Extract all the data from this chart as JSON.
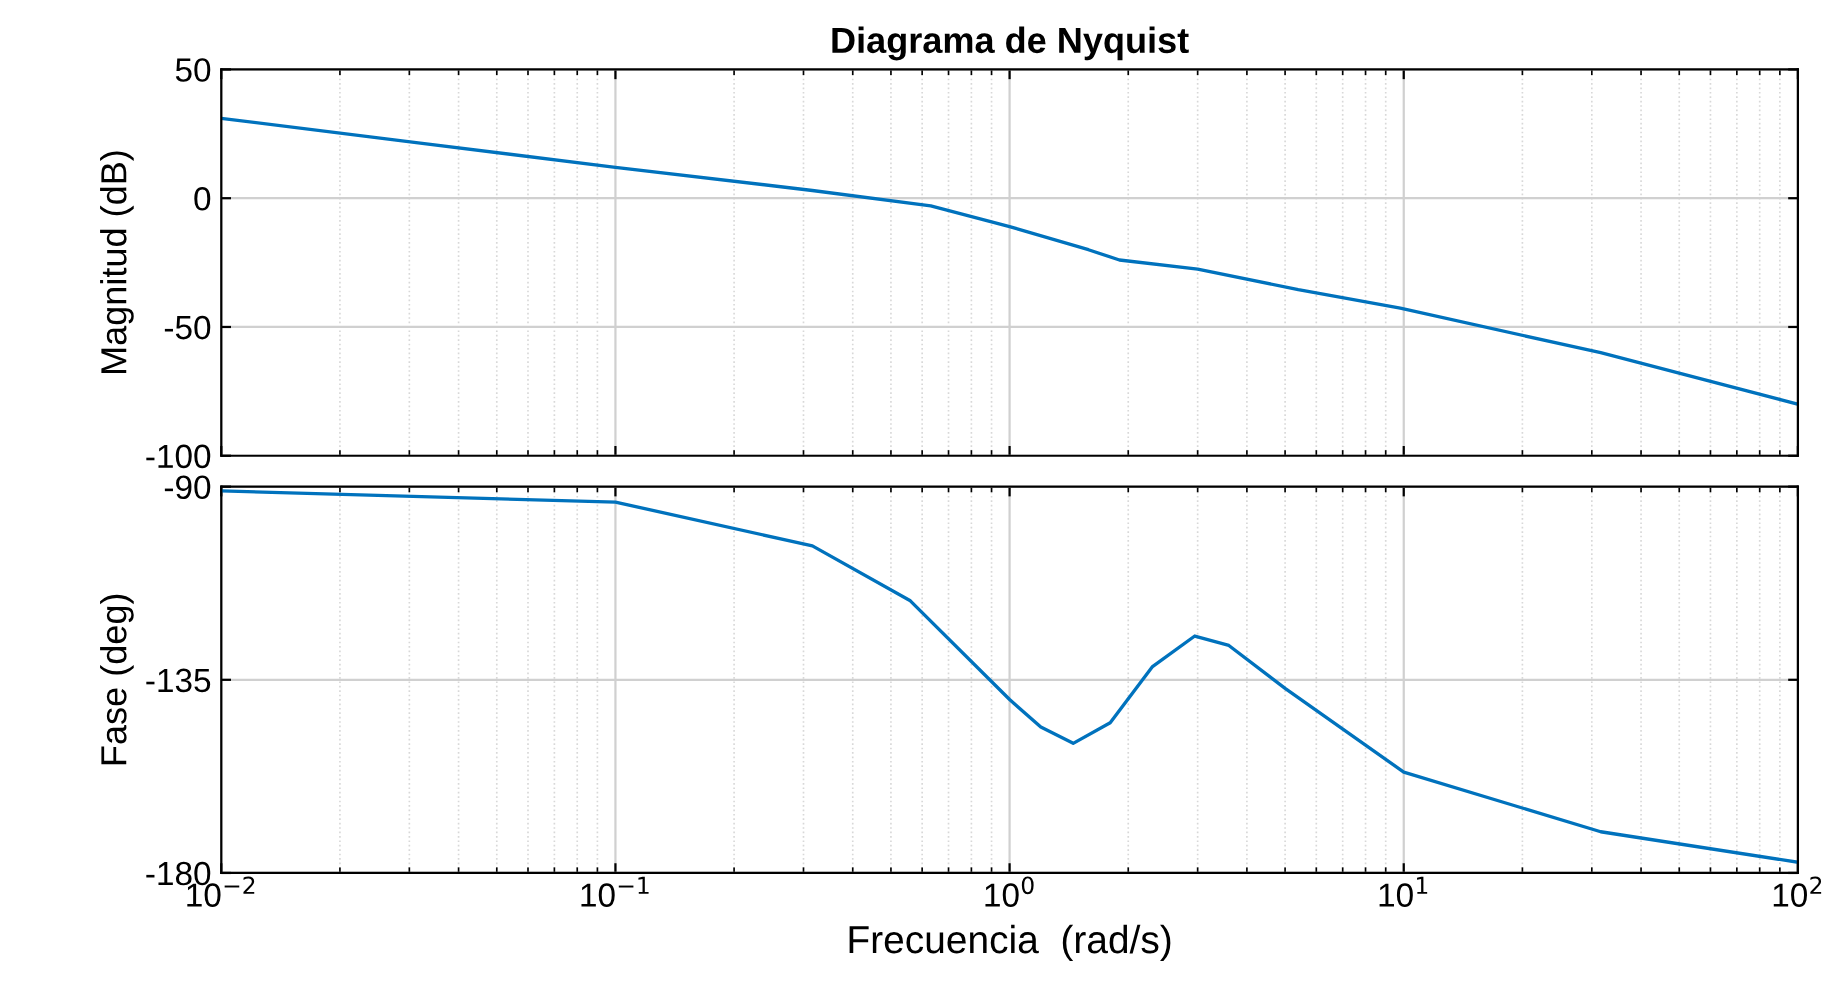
{
  "chart_data": [
    {
      "type": "line",
      "title": "Diagrama de Nyquist",
      "ylabel": "Magnitud (dB)",
      "log": "x",
      "grid": true,
      "tick_labels": "y",
      "xlim": [
        0.01,
        100
      ],
      "xticks": [
        0.01,
        0.1,
        1,
        10,
        100
      ],
      "ylim": [
        -100,
        50
      ],
      "yticks": [
        -100,
        -50,
        0,
        50
      ],
      "series": [
        {
          "color": "#0072bd",
          "x": [
            0.01,
            0.0316,
            0.1,
            0.316,
            0.631,
            1,
            1.585,
            1.9,
            3.0,
            5.4,
            9.8,
            31.6,
            100
          ],
          "values": [
            31,
            21.5,
            12,
            3,
            -3,
            -11,
            -20,
            -24,
            -27.5,
            -35.5,
            -42.7,
            -60,
            -80
          ]
        }
      ]
    },
    {
      "type": "line",
      "xlabel": "Frecuencia  (rad/s)",
      "ylabel": "Fase (deg)",
      "log": "x",
      "grid": true,
      "xlim": [
        0.01,
        100
      ],
      "xticks": [
        {
          "value": 0.01,
          "label": "10$^{−2}$"
        },
        {
          "value": 0.1,
          "label": "10$^{−1}$"
        },
        {
          "value": 1,
          "label": "10$^{0}$"
        },
        {
          "value": 10,
          "label": "10$^{1}$"
        },
        {
          "value": 100,
          "label": "10$^{2}$"
        }
      ],
      "ylim": [
        -180,
        -90
      ],
      "yticks": [
        -180,
        -135,
        -90
      ],
      "series": [
        {
          "color": "#0072bd",
          "x": [
            0.01,
            0.1,
            0.316,
            0.56,
            1,
            1.2,
            1.45,
            1.8,
            2.3,
            2.95,
            3.6,
            5,
            10,
            31.6,
            100
          ],
          "values": [
            -91,
            -93.6,
            -103.8,
            -116.6,
            -139.6,
            -146,
            -149.8,
            -145,
            -132,
            -124.8,
            -127,
            -137,
            -156.5,
            -170.4,
            -177.5
          ]
        }
      ]
    }
  ]
}
